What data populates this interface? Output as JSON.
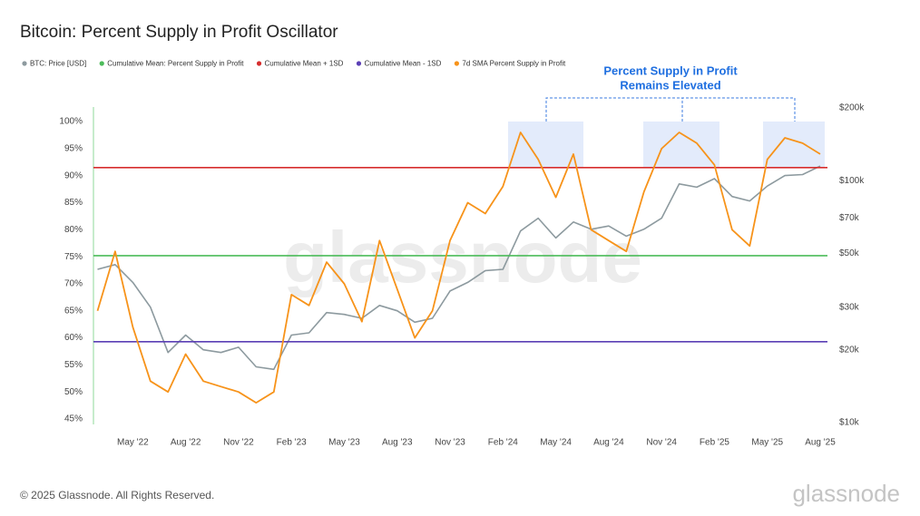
{
  "chart_data": {
    "type": "line",
    "title": "Bitcoin: Percent Supply in Profit Oscillator",
    "annotation": [
      "Percent Supply in Profit",
      "Remains Elevated"
    ],
    "watermark": "glassnode",
    "footer": "© 2025 Glassnode. All Rights Reserved.",
    "x": [
      "2022-03",
      "2022-04",
      "2022-05",
      "2022-06",
      "2022-07",
      "2022-08",
      "2022-09",
      "2022-10",
      "2022-11",
      "2022-12",
      "2023-01",
      "2023-02",
      "2023-03",
      "2023-04",
      "2023-05",
      "2023-06",
      "2023-07",
      "2023-08",
      "2023-09",
      "2023-10",
      "2023-11",
      "2023-12",
      "2024-01",
      "2024-02",
      "2024-03",
      "2024-04",
      "2024-05",
      "2024-06",
      "2024-07",
      "2024-08",
      "2024-09",
      "2024-10",
      "2024-11",
      "2024-12",
      "2025-01",
      "2025-02",
      "2025-03",
      "2025-04",
      "2025-05",
      "2025-06",
      "2025-07",
      "2025-08"
    ],
    "xlim": [
      "2022-03",
      "2025-08"
    ],
    "xticks": [
      {
        "value": "2022-05",
        "label": "May '22"
      },
      {
        "value": "2022-08",
        "label": "Aug '22"
      },
      {
        "value": "2022-11",
        "label": "Nov '22"
      },
      {
        "value": "2023-02",
        "label": "Feb '23"
      },
      {
        "value": "2023-05",
        "label": "May '23"
      },
      {
        "value": "2023-08",
        "label": "Aug '23"
      },
      {
        "value": "2023-11",
        "label": "Nov '23"
      },
      {
        "value": "2024-02",
        "label": "Feb '24"
      },
      {
        "value": "2024-05",
        "label": "May '24"
      },
      {
        "value": "2024-08",
        "label": "Aug '24"
      },
      {
        "value": "2024-11",
        "label": "Nov '24"
      },
      {
        "value": "2025-02",
        "label": "Feb '25"
      },
      {
        "value": "2025-05",
        "label": "May '25"
      },
      {
        "value": "2025-08",
        "label": "Aug '25"
      }
    ],
    "ylim": [
      44,
      102.7
    ],
    "yticks": [
      {
        "value": 45,
        "label": "45%"
      },
      {
        "value": 50,
        "label": "50%"
      },
      {
        "value": 55,
        "label": "55%"
      },
      {
        "value": 60,
        "label": "60%"
      },
      {
        "value": 65,
        "label": "65%"
      },
      {
        "value": 70,
        "label": "70%"
      },
      {
        "value": 75,
        "label": "75%"
      },
      {
        "value": 80,
        "label": "80%"
      },
      {
        "value": 85,
        "label": "85%"
      },
      {
        "value": 90,
        "label": "90%"
      },
      {
        "value": 95,
        "label": "95%"
      },
      {
        "value": 100,
        "label": "100%"
      }
    ],
    "y2lim": [
      9830,
      201700
    ],
    "y2scale": "log",
    "y2ticks": [
      {
        "value": 10000,
        "label": "$10k"
      },
      {
        "value": 20000,
        "label": "$20k"
      },
      {
        "value": 30000,
        "label": "$30k"
      },
      {
        "value": 50000,
        "label": "$50k"
      },
      {
        "value": 70000,
        "label": "$70k"
      },
      {
        "value": 100000,
        "label": "$100k"
      },
      {
        "value": 200000,
        "label": "$200k"
      }
    ],
    "series": [
      {
        "name": "BTC: Price [USD]",
        "color": "#8d9a9f",
        "axis": "y2",
        "values": [
          43000,
          45000,
          38000,
          30000,
          19500,
          23000,
          20000,
          19500,
          20500,
          17000,
          16600,
          23000,
          23500,
          28500,
          28000,
          27000,
          30500,
          29000,
          26000,
          27000,
          35000,
          38000,
          42500,
          43000,
          62000,
          70000,
          58000,
          67500,
          63000,
          65000,
          59000,
          63000,
          70000,
          97000,
          94000,
          102000,
          86000,
          82500,
          95000,
          105000,
          106000,
          115000
        ]
      },
      {
        "name": "Cumulative Mean: Percent Supply in Profit",
        "color": "#4cbb5a",
        "value": 75.2
      },
      {
        "name": "Cumulative Mean + 1SD",
        "color": "#d62d2d",
        "value": 91.5
      },
      {
        "name": "Cumulative Mean - 1SD",
        "color": "#5b3fb5",
        "value": 59.3
      },
      {
        "name": "7d SMA Percent Supply in Profit",
        "color": "#f7931a",
        "values": [
          65,
          76,
          62,
          52,
          50,
          57,
          52,
          51,
          50,
          48,
          50,
          68,
          66,
          74,
          70,
          63,
          78,
          69,
          60,
          65,
          78,
          85,
          83,
          88,
          98,
          93,
          86,
          94,
          80,
          78,
          76,
          87,
          95,
          98,
          96,
          92,
          80,
          77,
          93,
          97,
          96,
          94
        ]
      }
    ]
  }
}
